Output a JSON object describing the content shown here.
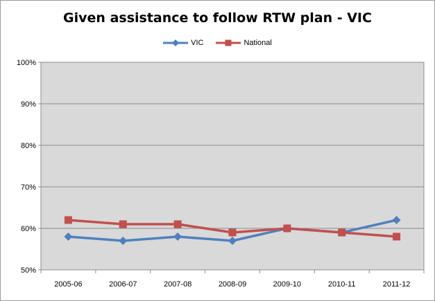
{
  "chart_data": {
    "type": "line",
    "title": "Given assistance to follow RTW plan - VIC",
    "categories": [
      "2005-06",
      "2006-07",
      "2007-08",
      "2008-09",
      "2009-10",
      "2010-11",
      "2011-12"
    ],
    "y_ticks": [
      "50%",
      "60%",
      "70%",
      "80%",
      "90%",
      "100%"
    ],
    "ylim": [
      50,
      100
    ],
    "y_unit": "%",
    "grid": true,
    "legend_position": "top",
    "series": [
      {
        "name": "VIC",
        "color": "#4f81bd",
        "marker": "diamond",
        "values": [
          58,
          57,
          58,
          57,
          60,
          59,
          62
        ]
      },
      {
        "name": "National",
        "color": "#c0504d",
        "marker": "square",
        "values": [
          62,
          61,
          61,
          59,
          60,
          59,
          58
        ]
      }
    ]
  }
}
